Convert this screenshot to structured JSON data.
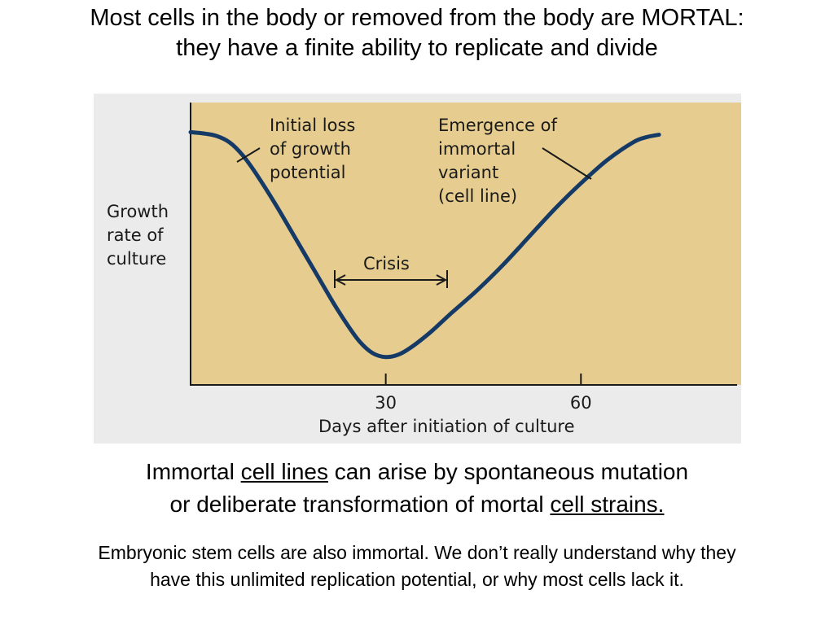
{
  "slide": {
    "title_line1": "Most cells in the body or removed from the body are MORTAL:",
    "title_line2": "they have a finite ability to replicate and divide",
    "caption1": {
      "pre": "Immortal ",
      "link1": "cell lines",
      "mid": " can arise by spontaneous mutation",
      "line2_pre": "or deliberate transformation of mortal ",
      "link2": "cell strains."
    },
    "caption2_line1": "Embryonic stem cells are also immortal.  We don’t really understand why they",
    "caption2_line2": "have this unlimited replication potential, or why most cells lack it."
  },
  "chart_data": {
    "type": "line",
    "xlabel": "Days after initiation of culture",
    "ylabel_lines": [
      "Growth",
      "rate of",
      "culture"
    ],
    "xticks": [
      30,
      60
    ],
    "xlim": [
      0,
      84
    ],
    "series": [
      {
        "x": [
          0,
          2,
          4,
          6,
          8,
          10,
          13,
          16,
          19,
          22,
          24,
          26,
          28,
          30,
          32,
          34,
          37,
          40,
          44,
          48,
          52,
          56,
          60,
          64,
          68,
          70,
          72
        ],
        "y": [
          0.9,
          0.895,
          0.885,
          0.86,
          0.81,
          0.74,
          0.62,
          0.49,
          0.36,
          0.23,
          0.15,
          0.08,
          0.035,
          0.02,
          0.03,
          0.06,
          0.12,
          0.19,
          0.28,
          0.38,
          0.49,
          0.6,
          0.7,
          0.79,
          0.86,
          0.88,
          0.89
        ]
      }
    ],
    "ylim": [
      0,
      1
    ],
    "annotations": {
      "initial_loss": [
        "Initial loss",
        "of growth",
        "potential"
      ],
      "emergence": [
        "Emergence of",
        "immortal",
        "variant",
        "(cell line)"
      ],
      "crisis": "Crisis"
    },
    "colors": {
      "plot_bg": "#e6cd8f",
      "curve": "#163a66",
      "frame_bg": "#ebebeb"
    }
  }
}
